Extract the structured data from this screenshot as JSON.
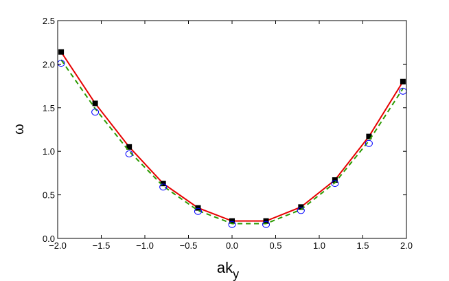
{
  "chart_data": {
    "type": "line",
    "title": "",
    "xlabel": "ak",
    "xlabel_subscript": "y",
    "ylabel": "ω",
    "xlim": [
      -2.0,
      2.0
    ],
    "ylim": [
      0.0,
      2.5
    ],
    "x_ticks": [
      -2.0,
      -1.5,
      -1.0,
      -0.5,
      0.0,
      0.5,
      1.0,
      1.5,
      2.0
    ],
    "x_tick_labels": [
      "−2.0",
      "−1.5",
      "−1.0",
      "−0.5",
      "0.0",
      "0.5",
      "1.0",
      "1.5",
      "2.0"
    ],
    "y_ticks": [
      0.0,
      0.5,
      1.0,
      1.5,
      2.0,
      2.5
    ],
    "y_tick_labels": [
      "0.0",
      "0.5",
      "1.0",
      "1.5",
      "2.0",
      "2.5"
    ],
    "grid": false,
    "legend": "none",
    "series": [
      {
        "style": "solid-line-with-square-markers",
        "line_color": "#e60000",
        "marker_color": "#000000",
        "x": [
          -1.96,
          -1.57,
          -1.18,
          -0.79,
          -0.39,
          0.0,
          0.39,
          0.79,
          1.18,
          1.57,
          1.96
        ],
        "values": [
          2.14,
          1.55,
          1.05,
          0.63,
          0.35,
          0.2,
          0.2,
          0.36,
          0.67,
          1.17,
          1.8
        ]
      },
      {
        "style": "dashed-line",
        "line_color": "#2a9a00",
        "x": [
          -1.96,
          -1.57,
          -1.18,
          -0.79,
          -0.39,
          0.0,
          0.39,
          0.79,
          1.18,
          1.57,
          1.96
        ],
        "values": [
          2.05,
          1.49,
          1.0,
          0.6,
          0.32,
          0.17,
          0.17,
          0.33,
          0.64,
          1.12,
          1.72
        ]
      },
      {
        "style": "open-circle-markers",
        "marker_color": "#0000ff",
        "x": [
          -1.96,
          -1.57,
          -1.18,
          -0.79,
          -0.39,
          0.0,
          0.39,
          0.79,
          1.18,
          1.57,
          1.96
        ],
        "values": [
          2.01,
          1.45,
          0.97,
          0.59,
          0.31,
          0.16,
          0.16,
          0.32,
          0.63,
          1.09,
          1.69
        ]
      }
    ]
  }
}
